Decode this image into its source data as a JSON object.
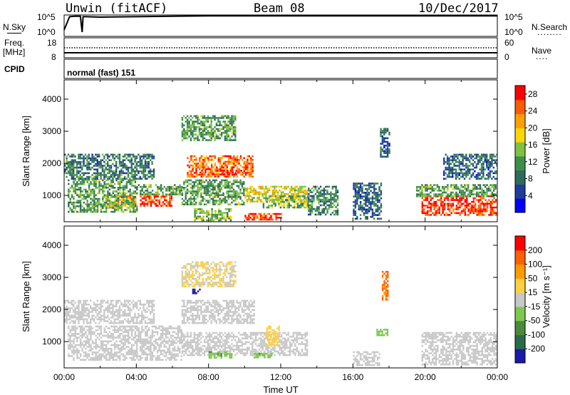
{
  "header": {
    "station": "Unwin (fitACF)",
    "beam": "Beam 08",
    "date": "10/Dec/2017"
  },
  "left_labels": {
    "nsky": "N.Sky",
    "freq": "Freq.",
    "freq_unit": "[MHz]",
    "cpid": "CPID"
  },
  "right_labels": {
    "nsearch": "N.Search",
    "nsearch_line": "........",
    "nave": "Nave",
    "nave_line": "...."
  },
  "noise_axis": {
    "left_top": "10^5",
    "left_bottom": "10^0",
    "right_top": "10^5",
    "right_bottom": "10^0"
  },
  "freq_axis": {
    "left_top": "18",
    "left_bottom": "8",
    "right_top": "60",
    "right_bottom": "0"
  },
  "cpid_text": "normal (fast) 151",
  "colors": {
    "power_scale": [
      "#0000ff",
      "#1e3c9a",
      "#2e6a5a",
      "#3f8f4a",
      "#7fc241",
      "#ffd700",
      "#ffa000",
      "#ff5a00",
      "#ff0000"
    ],
    "velocity_scale": [
      "#1a1aa8",
      "#2a6a4a",
      "#4a8a3a",
      "#7cc850",
      "#c8c8c8",
      "#ffd040",
      "#ff9a00",
      "#ff6000",
      "#ff0000"
    ]
  },
  "chart_data": [
    {
      "type": "heatmap",
      "panel": "power",
      "xlabel": "",
      "ylabel": "Slant Range [km]",
      "xlim": [
        "00:00",
        "24:00"
      ],
      "ylim": [
        180,
        4600
      ],
      "y_ticks": [
        "1000",
        "2000",
        "3000",
        "4000"
      ],
      "colorbar": {
        "label": "Power [dB]",
        "ticks": [
          "4",
          "8",
          "12",
          "16",
          "20",
          "24",
          "28"
        ],
        "range": [
          0,
          30
        ]
      },
      "echo_regions": [
        {
          "t_start": 6.8,
          "t_end": 10.4,
          "r_start": 1600,
          "r_end": 2250,
          "value": 24
        },
        {
          "t_start": 7.5,
          "t_end": 9.8,
          "r_start": 1650,
          "r_end": 1800,
          "value": 28
        },
        {
          "t_start": 2.3,
          "t_end": 4.0,
          "r_start": 650,
          "r_end": 1000,
          "value": 22
        },
        {
          "t_start": 4.2,
          "t_end": 6.0,
          "r_start": 700,
          "r_end": 1050,
          "value": 27
        },
        {
          "t_start": 4.0,
          "t_end": 6.5,
          "r_start": 1050,
          "r_end": 1350,
          "value": 12
        },
        {
          "t_start": 0.2,
          "t_end": 4.0,
          "r_start": 500,
          "r_end": 1500,
          "value": 12
        },
        {
          "t_start": 0.0,
          "t_end": 5.0,
          "r_start": 1500,
          "r_end": 2300,
          "value": 9
        },
        {
          "t_start": 6.5,
          "t_end": 10.0,
          "r_start": 700,
          "r_end": 1500,
          "value": 12
        },
        {
          "t_start": 7.2,
          "t_end": 9.2,
          "r_start": 250,
          "r_end": 600,
          "value": 14
        },
        {
          "t_start": 10.0,
          "t_end": 13.5,
          "r_start": 800,
          "r_end": 1300,
          "value": 18
        },
        {
          "t_start": 10.0,
          "t_end": 12.0,
          "r_start": 250,
          "r_end": 450,
          "value": 26
        },
        {
          "t_start": 11.0,
          "t_end": 13.5,
          "r_start": 600,
          "r_end": 1000,
          "value": 14
        },
        {
          "t_start": 13.5,
          "t_end": 15.2,
          "r_start": 400,
          "r_end": 1300,
          "value": 10
        },
        {
          "t_start": 16.0,
          "t_end": 17.6,
          "r_start": 300,
          "r_end": 1400,
          "value": 8
        },
        {
          "t_start": 17.5,
          "t_end": 18.0,
          "r_start": 2200,
          "r_end": 3100,
          "value": 8
        },
        {
          "t_start": 19.8,
          "t_end": 24.0,
          "r_start": 400,
          "r_end": 1000,
          "value": 27
        },
        {
          "t_start": 19.5,
          "t_end": 24.0,
          "r_start": 1000,
          "r_end": 1350,
          "value": 12
        },
        {
          "t_start": 21.0,
          "t_end": 24.0,
          "r_start": 1500,
          "r_end": 2300,
          "value": 8
        },
        {
          "t_start": 6.5,
          "t_end": 9.5,
          "r_start": 2700,
          "r_end": 3500,
          "value": 12
        }
      ]
    },
    {
      "type": "heatmap",
      "panel": "velocity",
      "xlabel": "Time UT",
      "ylabel": "Slant Range [km]",
      "xlim": [
        "00:00",
        "24:00"
      ],
      "x_ticks": [
        "00:00",
        "04:00",
        "08:00",
        "12:00",
        "16:00",
        "20:00",
        "00:00"
      ],
      "ylim": [
        180,
        4600
      ],
      "y_ticks": [
        "1000",
        "2000",
        "3000",
        "4000"
      ],
      "colorbar": {
        "label": "Velocity [m s⁻¹]",
        "ticks": [
          "200",
          "100",
          "50",
          "15",
          "-15",
          "-50",
          "-100",
          "-200"
        ],
        "range": [
          -250,
          250
        ]
      },
      "echo_regions": [
        {
          "t_start": 6.5,
          "t_end": 10.5,
          "r_start": 1550,
          "r_end": 2300,
          "value": 0
        },
        {
          "t_start": 0.2,
          "t_end": 6.5,
          "r_start": 450,
          "r_end": 1500,
          "value": 0
        },
        {
          "t_start": 0.0,
          "t_end": 5.0,
          "r_start": 1550,
          "r_end": 2300,
          "value": 0
        },
        {
          "t_start": 6.5,
          "t_end": 13.5,
          "r_start": 600,
          "r_end": 1300,
          "value": 0
        },
        {
          "t_start": 8.0,
          "t_end": 9.3,
          "r_start": 500,
          "r_end": 700,
          "value": -70
        },
        {
          "t_start": 10.5,
          "t_end": 11.5,
          "r_start": 500,
          "r_end": 650,
          "value": -70
        },
        {
          "t_start": 11.2,
          "t_end": 11.9,
          "r_start": 900,
          "r_end": 1500,
          "value": 50
        },
        {
          "t_start": 16.0,
          "t_end": 17.5,
          "r_start": 250,
          "r_end": 700,
          "value": 0
        },
        {
          "t_start": 17.3,
          "t_end": 17.9,
          "r_start": 1200,
          "r_end": 1400,
          "value": -60
        },
        {
          "t_start": 17.6,
          "t_end": 17.9,
          "r_start": 2300,
          "r_end": 3200,
          "value": 150
        },
        {
          "t_start": 19.8,
          "t_end": 24.0,
          "r_start": 300,
          "r_end": 1300,
          "value": 0
        },
        {
          "t_start": 6.5,
          "t_end": 9.5,
          "r_start": 2700,
          "r_end": 3500,
          "value": 30
        },
        {
          "t_start": 7.0,
          "t_end": 7.6,
          "r_start": 2500,
          "r_end": 2650,
          "value": -220
        }
      ]
    }
  ],
  "noise_series": {
    "x_hours": [
      0.0,
      0.3,
      0.6,
      0.9,
      1.0,
      1.05,
      1.2,
      2.0,
      4.0,
      6.0,
      8.0,
      10.0,
      12.0,
      14.0,
      16.0,
      17.0,
      18.0,
      20.0,
      24.0
    ],
    "log10_value": [
      1.5,
      4.6,
      4.7,
      4.7,
      1.0,
      4.6,
      4.6,
      4.5,
      4.6,
      4.7,
      4.8,
      4.8,
      4.8,
      4.8,
      4.8,
      4.8,
      4.8,
      4.8,
      4.8
    ]
  },
  "freq_series": {
    "x_hours": [
      0.0,
      24.0
    ],
    "mhz": [
      10.5,
      10.5
    ]
  }
}
